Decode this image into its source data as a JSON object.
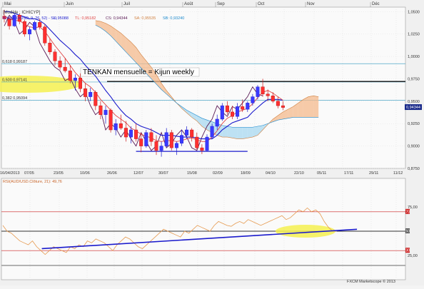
{
  "top_month_labels": [
    "Mai",
    "Juin",
    "Juil",
    "Août",
    "Sep",
    "Oct",
    "Nov",
    "Déc"
  ],
  "main_panel": {
    "title": "[Modèle : ICHICYP]",
    "indicator_legend": {
      "instrument_prefix": "ICH(AUD/USD, 9, 26, 52) - SL: ",
      "sl_value": "0,95088",
      "tl_label": "TL: 0,95182",
      "cs_label": "CS: 0,94344",
      "sa_label": "SA: 0,95535",
      "sb_label": "SB: 0,93240"
    },
    "annotation": "TENKAN mensuelle = Kijun  weekly",
    "price_tag": "0,94344",
    "fib_levels": [
      {
        "label": "0,618 0,99187",
        "value": 0.99187
      },
      {
        "label": "0,500 0,97141",
        "value": 0.97141
      },
      {
        "label": "0,382 0,95094",
        "value": 0.95094
      }
    ]
  },
  "date_axis": [
    "16/04/2013",
    "07/05",
    "23/05",
    "10/06",
    "26/06",
    "12/07",
    "30/07",
    "15/08",
    "02/09",
    "18/09",
    "04/10",
    "22/10",
    "05/11",
    "17/11",
    "29/11",
    "11/12"
  ],
  "rsi_panel": {
    "legend": "RSI(AUD/USD.Clôture, 21): 49,76",
    "axis_labels": [
      "75,00",
      "25,00"
    ],
    "level_tags": [
      "70",
      "50",
      "30"
    ]
  },
  "footer": "FXCM Marketscope © 2013",
  "colors": {
    "tenkan": "#e04545",
    "kijun": "#1a1acc",
    "chikou": "#5a1a55",
    "cloud_bull": "#f4ba8c",
    "cloud_bear": "#a8d8f0",
    "fib_line": "#4fa8c8",
    "rsi_line": "#e69a50",
    "trend_line": "#1a1acc",
    "highlight": "#f5f050"
  },
  "chart_data": [
    {
      "type": "candlestick",
      "title": "",
      "series": "AUD/USD",
      "ylim": [
        0.875,
        1.055
      ],
      "y_ticks": [
        "0,8750",
        "0,9000",
        "0,9250",
        "0,9500",
        "0,9750",
        "1,0000",
        "1,0250",
        "1,0500"
      ],
      "ohlc": [
        [
          1.045,
          1.052,
          1.038,
          1.042
        ],
        [
          1.042,
          1.044,
          1.03,
          1.034
        ],
        [
          1.034,
          1.048,
          1.033,
          1.046
        ],
        [
          1.046,
          1.048,
          1.036,
          1.039
        ],
        [
          1.039,
          1.041,
          1.022,
          1.025
        ],
        [
          1.025,
          1.033,
          1.018,
          1.03
        ],
        [
          1.03,
          1.04,
          1.029,
          1.038
        ],
        [
          1.038,
          1.042,
          1.03,
          1.033
        ],
        [
          1.033,
          1.036,
          1.012,
          1.015
        ],
        [
          1.015,
          1.02,
          1.002,
          1.005
        ],
        [
          1.005,
          1.008,
          0.99,
          0.995
        ],
        [
          0.995,
          1.0,
          0.985,
          0.988
        ],
        [
          0.988,
          0.998,
          0.982,
          0.984
        ],
        [
          0.984,
          0.99,
          0.97,
          0.973
        ],
        [
          0.973,
          0.98,
          0.962,
          0.976
        ],
        [
          0.976,
          0.981,
          0.96,
          0.964
        ],
        [
          0.964,
          0.97,
          0.95,
          0.955
        ],
        [
          0.955,
          0.965,
          0.95,
          0.96
        ],
        [
          0.96,
          0.962,
          0.94,
          0.945
        ],
        [
          0.945,
          0.95,
          0.93,
          0.935
        ],
        [
          0.935,
          0.945,
          0.925,
          0.94
        ],
        [
          0.94,
          0.942,
          0.915,
          0.918
        ],
        [
          0.918,
          0.93,
          0.912,
          0.925
        ],
        [
          0.925,
          0.935,
          0.918,
          0.92
        ],
        [
          0.92,
          0.928,
          0.905,
          0.91
        ],
        [
          0.91,
          0.922,
          0.903,
          0.918
        ],
        [
          0.918,
          0.925,
          0.905,
          0.908
        ],
        [
          0.908,
          0.915,
          0.893,
          0.9
        ],
        [
          0.9,
          0.918,
          0.898,
          0.915
        ],
        [
          0.915,
          0.92,
          0.9,
          0.905
        ],
        [
          0.905,
          0.912,
          0.89,
          0.895
        ],
        [
          0.895,
          0.905,
          0.888,
          0.9
        ],
        [
          0.9,
          0.92,
          0.898,
          0.915
        ],
        [
          0.915,
          0.918,
          0.895,
          0.898
        ],
        [
          0.898,
          0.905,
          0.89,
          0.903
        ],
        [
          0.903,
          0.918,
          0.9,
          0.912
        ],
        [
          0.912,
          0.922,
          0.908,
          0.918
        ],
        [
          0.918,
          0.92,
          0.905,
          0.91
        ],
        [
          0.91,
          0.915,
          0.896,
          0.898
        ],
        [
          0.898,
          0.902,
          0.891,
          0.895
        ],
        [
          0.895,
          0.913,
          0.894,
          0.91
        ],
        [
          0.91,
          0.925,
          0.908,
          0.922
        ],
        [
          0.922,
          0.935,
          0.918,
          0.93
        ],
        [
          0.93,
          0.948,
          0.928,
          0.945
        ],
        [
          0.945,
          0.95,
          0.935,
          0.938
        ],
        [
          0.938,
          0.945,
          0.93,
          0.933
        ],
        [
          0.933,
          0.948,
          0.93,
          0.944
        ],
        [
          0.944,
          0.952,
          0.938,
          0.941
        ],
        [
          0.941,
          0.95,
          0.938,
          0.948
        ],
        [
          0.948,
          0.958,
          0.945,
          0.955
        ],
        [
          0.955,
          0.968,
          0.952,
          0.966
        ],
        [
          0.966,
          0.975,
          0.955,
          0.958
        ],
        [
          0.958,
          0.963,
          0.95,
          0.956
        ],
        [
          0.956,
          0.96,
          0.948,
          0.95
        ],
        [
          0.95,
          0.955,
          0.942,
          0.945
        ],
        [
          0.945,
          0.95,
          0.94,
          0.943
        ]
      ],
      "lines": {
        "tenkan": [
          1.045,
          1.042,
          1.04,
          1.04,
          1.036,
          1.033,
          1.032,
          1.033,
          1.028,
          1.02,
          1.012,
          1.005,
          0.998,
          0.99,
          0.982,
          0.976,
          0.97,
          0.966,
          0.96,
          0.952,
          0.946,
          0.94,
          0.934,
          0.93,
          0.926,
          0.92,
          0.917,
          0.913,
          0.911,
          0.909,
          0.906,
          0.905,
          0.906,
          0.906,
          0.905,
          0.906,
          0.908,
          0.909,
          0.907,
          0.905,
          0.905,
          0.91,
          0.917,
          0.925,
          0.931,
          0.934,
          0.938,
          0.94,
          0.942,
          0.947,
          0.954,
          0.96,
          0.962,
          0.959,
          0.955,
          0.951
        ],
        "kijun": [
          1.05,
          1.05,
          1.048,
          1.046,
          1.044,
          1.042,
          1.042,
          1.04,
          1.036,
          1.03,
          1.024,
          1.018,
          1.013,
          1.008,
          1.002,
          0.997,
          0.99,
          0.984,
          0.978,
          0.97,
          0.962,
          0.955,
          0.947,
          0.94,
          0.934,
          0.93,
          0.925,
          0.922,
          0.92,
          0.918,
          0.915,
          0.912,
          0.912,
          0.912,
          0.911,
          0.91,
          0.91,
          0.91,
          0.909,
          0.908,
          0.908,
          0.908,
          0.912,
          0.918,
          0.922,
          0.926,
          0.928,
          0.93,
          0.932,
          0.938,
          0.943,
          0.948,
          0.952,
          0.952,
          0.952,
          0.951
        ],
        "chikou": [
          1.034,
          1.046,
          1.039,
          1.025,
          1.03,
          1.038,
          1.033,
          1.015,
          1.005,
          0.995,
          0.988,
          0.984,
          0.973,
          0.976,
          0.964,
          0.955,
          0.96,
          0.945,
          0.935,
          0.94,
          0.918,
          0.925,
          0.92,
          0.91,
          0.918,
          0.908,
          0.9,
          0.915,
          0.905,
          0.895,
          0.9,
          0.915,
          0.898,
          0.903,
          0.912,
          0.918,
          0.91,
          0.898,
          0.895,
          0.91,
          0.922,
          0.93,
          0.945,
          0.938,
          0.933,
          0.944,
          0.941,
          0.948,
          0.955,
          0.966,
          0.958,
          0.956
        ],
        "senkou_a": [
          1.04,
          1.039,
          1.037,
          1.034,
          1.03,
          1.026,
          1.021,
          1.016,
          1.01,
          1.002,
          0.995,
          0.988,
          0.98,
          0.97,
          0.962,
          0.955,
          0.948,
          0.942,
          0.937,
          0.932,
          0.928,
          0.922,
          0.918,
          0.915,
          0.912,
          0.91,
          0.91,
          0.909,
          0.908,
          0.908,
          0.909,
          0.91,
          0.912,
          0.918,
          0.924,
          0.93,
          0.934,
          0.938,
          0.941,
          0.944,
          0.948,
          0.952,
          0.955,
          0.956,
          0.955
        ],
        "senkou_b": [
          1.035,
          1.032,
          1.028,
          1.023,
          1.017,
          1.011,
          1.005,
          0.999,
          0.993,
          0.987,
          0.981,
          0.975,
          0.969,
          0.963,
          0.958,
          0.953,
          0.948,
          0.944,
          0.94,
          0.937,
          0.934,
          0.931,
          0.929,
          0.927,
          0.925,
          0.923,
          0.922,
          0.921,
          0.921,
          0.921,
          0.921,
          0.921,
          0.922,
          0.923,
          0.925,
          0.927,
          0.929,
          0.93,
          0.931,
          0.932,
          0.932,
          0.932,
          0.932,
          0.932,
          0.932
        ]
      },
      "support_line": {
        "value": 0.894,
        "x_from": 26,
        "x_to": 48
      }
    },
    {
      "type": "line",
      "title": "",
      "series": "RSI",
      "ylim": [
        0,
        100
      ],
      "levels": [
        70,
        50,
        30
      ],
      "values": [
        56,
        50,
        48,
        44,
        40,
        38,
        36,
        40,
        34,
        30,
        26,
        30,
        34,
        32,
        30,
        28,
        34,
        32,
        36,
        34,
        40,
        38,
        42,
        40,
        38,
        34,
        30,
        36,
        40,
        44,
        42,
        38,
        34,
        32,
        36,
        40,
        44,
        48,
        52,
        50,
        48,
        46,
        44,
        50,
        48,
        52,
        56,
        54,
        52,
        50,
        56,
        60,
        58,
        56,
        55,
        58,
        60,
        58,
        62,
        60,
        58,
        56,
        58,
        60,
        62,
        64,
        66,
        62,
        64,
        68,
        72,
        70,
        74,
        70,
        72,
        68,
        60,
        54,
        50,
        50
      ],
      "trendline": {
        "from": [
          0.1,
          32
        ],
        "to": [
          0.88,
          52
        ]
      }
    }
  ]
}
